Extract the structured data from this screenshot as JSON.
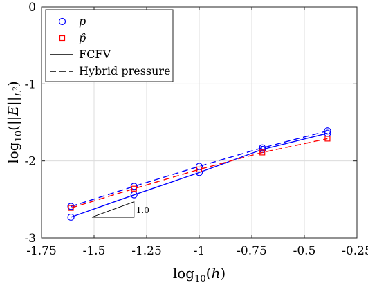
{
  "chart_data": {
    "type": "line",
    "xlabel": "log10(h)",
    "ylabel": "log10(||E||L2)",
    "xlim": [
      -1.75,
      -0.25
    ],
    "ylim": [
      -3,
      0
    ],
    "xticks": [
      "-1.75",
      "-1.5",
      "-1.25",
      "-1",
      "-0.75",
      "-0.5",
      "-0.25"
    ],
    "yticks": [
      "-3",
      "-2",
      "-1",
      "0"
    ],
    "grid": true,
    "legend_position": "top-left",
    "legend": [
      {
        "label": "p",
        "kind": "marker-circle",
        "color": "#0000ff"
      },
      {
        "label": "p̂",
        "kind": "marker-square",
        "color": "#ff0000"
      },
      {
        "label": "FCFV",
        "kind": "line-solid",
        "color": "#000000"
      },
      {
        "label": "Hybrid pressure",
        "kind": "line-dashed",
        "color": "#000000"
      }
    ],
    "series": [
      {
        "marker": "circle",
        "line": "solid",
        "color": "#0000ff",
        "x": [
          -1.61,
          -1.31,
          -1.0,
          -0.7,
          -0.39
        ],
        "y": [
          -2.73,
          -2.44,
          -2.15,
          -1.85,
          -1.64
        ]
      },
      {
        "marker": "circle",
        "line": "dashed",
        "color": "#0000ff",
        "x": [
          -1.61,
          -1.31,
          -1.0,
          -0.7,
          -0.39
        ],
        "y": [
          -2.59,
          -2.33,
          -2.07,
          -1.83,
          -1.61
        ]
      },
      {
        "marker": "square",
        "line": "dashed",
        "color": "#ff0000",
        "x": [
          -1.61,
          -1.31,
          -1.0,
          -0.7,
          -0.39
        ],
        "y": [
          -2.61,
          -2.36,
          -2.11,
          -1.89,
          -1.71
        ]
      }
    ],
    "slope_triangle": {
      "label": "1.0",
      "x": [
        -1.51,
        -1.31
      ],
      "y": [
        -2.73,
        -2.53
      ]
    }
  }
}
